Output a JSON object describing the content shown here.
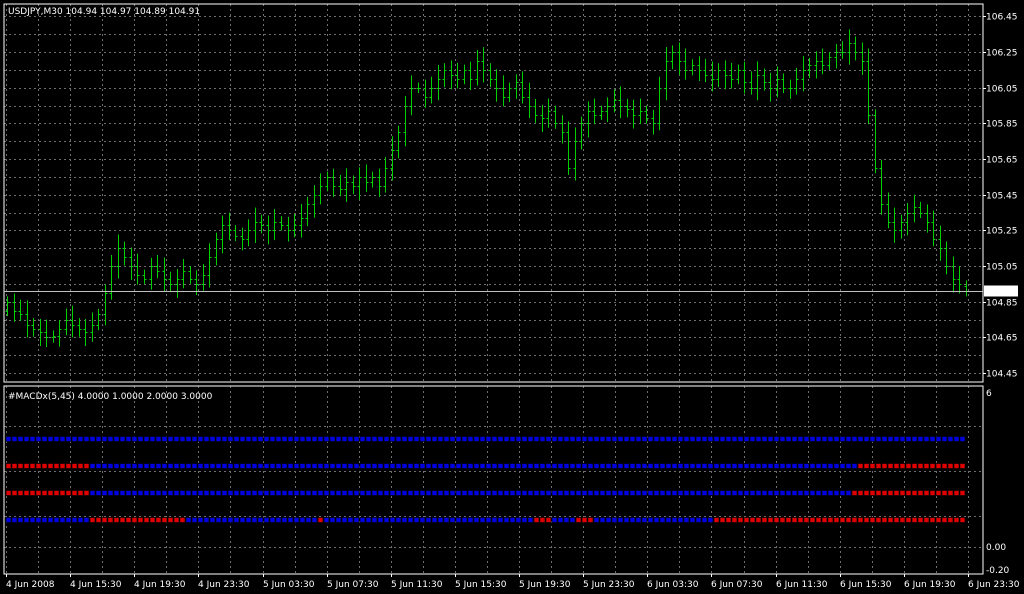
{
  "main_chart": {
    "header": "USDJPY,M30  104.94 104.97 104.89 104.91",
    "current_price": "104.91",
    "y_ticks": [
      "106.45",
      "106.25",
      "106.05",
      "105.85",
      "105.65",
      "105.45",
      "105.25",
      "105.05",
      "104.85",
      "104.65",
      "104.45"
    ],
    "colors": {
      "bars": "#00d000",
      "grid": "#6e6e6e",
      "frame": "#ffffff",
      "background": "#000000"
    }
  },
  "indicator": {
    "header": "#MACDx(5,45) 4.0000 1.0000 2.0000 3.0000",
    "y_ticks": [
      "6",
      "0.00",
      "-0.20"
    ],
    "colors": {
      "up": "#0000e0",
      "down": "#e00000"
    }
  },
  "x_ticks": [
    "4 Jun 2008",
    "4 Jun 15:30",
    "4 Jun 19:30",
    "4 Jun 23:30",
    "5 Jun 03:30",
    "5 Jun 07:30",
    "5 Jun 11:30",
    "5 Jun 15:30",
    "5 Jun 19:30",
    "5 Jun 23:30",
    "6 Jun 03:30",
    "6 Jun 07:30",
    "6 Jun 11:30",
    "6 Jun 15:30",
    "6 Jun 19:30",
    "6 Jun 23:30"
  ],
  "chart_data": {
    "type": "ohlc",
    "symbol": "USDJPY",
    "timeframe": "M30",
    "ylim": [
      104.4,
      106.52
    ],
    "close": [
      104.85,
      104.8,
      104.78,
      104.72,
      104.7,
      104.68,
      104.65,
      104.66,
      104.7,
      104.75,
      104.72,
      104.7,
      104.68,
      104.72,
      104.78,
      104.9,
      105.05,
      105.15,
      105.1,
      105.05,
      105.0,
      104.98,
      105.05,
      105.02,
      104.98,
      104.95,
      104.98,
      105.02,
      104.98,
      104.95,
      105.0,
      105.1,
      105.2,
      105.28,
      105.25,
      105.22,
      105.2,
      105.25,
      105.3,
      105.28,
      105.25,
      105.3,
      105.28,
      105.25,
      105.28,
      105.32,
      105.4,
      105.45,
      105.5,
      105.55,
      105.5,
      105.48,
      105.52,
      105.5,
      105.55,
      105.52,
      105.55,
      105.5,
      105.6,
      105.7,
      105.8,
      105.95,
      106.05,
      106.05,
      106.0,
      106.05,
      106.1,
      106.15,
      106.12,
      106.1,
      106.15,
      106.1,
      106.2,
      106.15,
      106.1,
      106.05,
      106.0,
      106.05,
      106.08,
      106.0,
      105.95,
      105.9,
      105.88,
      105.92,
      105.85,
      105.8,
      105.6,
      105.75,
      105.85,
      105.92,
      105.9,
      105.92,
      105.95,
      105.98,
      105.95,
      105.93,
      105.9,
      105.92,
      105.88,
      105.85,
      106.05,
      106.2,
      106.25,
      106.2,
      106.15,
      106.18,
      106.15,
      106.12,
      106.1,
      106.15,
      106.12,
      106.1,
      106.15,
      106.08,
      106.05,
      106.12,
      106.08,
      106.05,
      106.1,
      106.05,
      106.05,
      106.1,
      106.15,
      106.18,
      106.2,
      106.18,
      106.22,
      106.25,
      106.25,
      106.3,
      106.25,
      106.2,
      105.9,
      105.6,
      105.4,
      105.3,
      105.25,
      105.3,
      105.35,
      105.38,
      105.35,
      105.3,
      105.2,
      105.15,
      105.05,
      104.98,
      104.95,
      104.91
    ],
    "open": [
      104.8,
      104.85,
      104.8,
      104.78,
      104.72,
      104.7,
      104.68,
      104.65,
      104.66,
      104.7,
      104.75,
      104.72,
      104.7,
      104.68,
      104.72,
      104.78,
      104.9,
      105.05,
      105.15,
      105.1,
      105.05,
      105.0,
      104.98,
      105.05,
      105.02,
      104.98,
      104.95,
      104.98,
      105.02,
      104.98,
      104.95,
      105.0,
      105.1,
      105.2,
      105.28,
      105.25,
      105.22,
      105.2,
      105.25,
      105.3,
      105.28,
      105.25,
      105.3,
      105.28,
      105.25,
      105.28,
      105.32,
      105.4,
      105.45,
      105.5,
      105.55,
      105.5,
      105.48,
      105.52,
      105.5,
      105.55,
      105.52,
      105.55,
      105.5,
      105.6,
      105.7,
      105.8,
      105.95,
      106.05,
      106.05,
      106.0,
      106.05,
      106.1,
      106.15,
      106.12,
      106.1,
      106.15,
      106.1,
      106.2,
      106.15,
      106.1,
      106.05,
      106.0,
      106.05,
      106.08,
      106.0,
      105.95,
      105.9,
      105.88,
      105.92,
      105.85,
      105.8,
      105.6,
      105.75,
      105.85,
      105.92,
      105.9,
      105.92,
      105.95,
      105.98,
      105.95,
      105.93,
      105.9,
      105.92,
      105.88,
      105.85,
      106.05,
      106.2,
      106.25,
      106.2,
      106.15,
      106.18,
      106.15,
      106.12,
      106.1,
      106.15,
      106.12,
      106.1,
      106.15,
      106.08,
      106.05,
      106.12,
      106.08,
      106.05,
      106.1,
      106.05,
      106.05,
      106.1,
      106.15,
      106.18,
      106.2,
      106.18,
      106.22,
      106.25,
      106.25,
      106.3,
      106.25,
      106.2,
      105.9,
      105.6,
      105.4,
      105.3,
      105.25,
      105.3,
      105.35,
      105.38,
      105.35,
      105.3,
      105.2,
      105.15,
      105.05,
      104.98,
      104.94
    ],
    "macd_rows": [
      {
        "segments": [
          {
            "from": 0,
            "to": 1,
            "state": "up"
          }
        ]
      },
      {
        "segments": [
          {
            "from": 0,
            "to": 0.085,
            "state": "down"
          },
          {
            "from": 0.085,
            "to": 0.885,
            "state": "up"
          },
          {
            "from": 0.885,
            "to": 1,
            "state": "down"
          }
        ]
      },
      {
        "segments": [
          {
            "from": 0,
            "to": 0.085,
            "state": "down"
          },
          {
            "from": 0.085,
            "to": 0.875,
            "state": "up"
          },
          {
            "from": 0.875,
            "to": 1,
            "state": "down"
          }
        ]
      },
      {
        "segments": [
          {
            "from": 0,
            "to": 0.085,
            "state": "up"
          },
          {
            "from": 0.085,
            "to": 0.185,
            "state": "down"
          },
          {
            "from": 0.185,
            "to": 0.32,
            "state": "up"
          },
          {
            "from": 0.32,
            "to": 0.33,
            "state": "down"
          },
          {
            "from": 0.33,
            "to": 0.545,
            "state": "up"
          },
          {
            "from": 0.545,
            "to": 0.565,
            "state": "down"
          },
          {
            "from": 0.565,
            "to": 0.59,
            "state": "up"
          },
          {
            "from": 0.59,
            "to": 0.605,
            "state": "down"
          },
          {
            "from": 0.605,
            "to": 0.735,
            "state": "up"
          },
          {
            "from": 0.735,
            "to": 1,
            "state": "down"
          }
        ]
      }
    ]
  }
}
